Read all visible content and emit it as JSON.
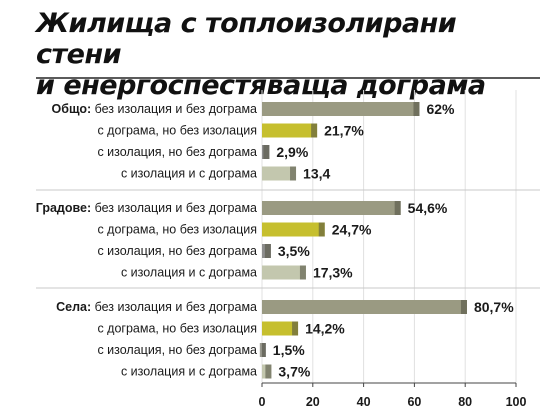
{
  "chart_data": {
    "type": "bar",
    "title_lines": [
      "Жилища с топлоизолирани стени",
      "и енергоспестяваща дограма"
    ],
    "x_ticks": [
      0,
      20,
      40,
      60,
      80,
      100
    ],
    "xlim": [
      0,
      100
    ],
    "grid": true,
    "colors": {
      "без изолация и без дограма": "#9a9a82",
      "с дограма, но без изолация": "#c6bf2e",
      "с изолация, но без дограма": "#8d8d8d",
      "с изолация и с дограма": "#c3c7ae"
    },
    "groups": [
      {
        "name": "Общо:",
        "items": [
          {
            "category": "без изолация и без дограма",
            "value": 62,
            "label": "62%"
          },
          {
            "category": "с дограма, но без изолация",
            "value": 21.7,
            "label": "21,7%"
          },
          {
            "category": "с изолация, но без дограма",
            "value": 2.9,
            "label": "2,9%"
          },
          {
            "category": "с изолация и с дограма",
            "value": 13.4,
            "label": "13,4"
          }
        ]
      },
      {
        "name": "Градове:",
        "items": [
          {
            "category": "без изолация и без дограма",
            "value": 54.6,
            "label": "54,6%"
          },
          {
            "category": "с дограма, но без изолация",
            "value": 24.7,
            "label": "24,7%"
          },
          {
            "category": "с изолация, но без дограма",
            "value": 3.5,
            "label": "3,5%"
          },
          {
            "category": "с изолация и с дограма",
            "value": 17.3,
            "label": "17,3%"
          }
        ]
      },
      {
        "name": "Села:",
        "items": [
          {
            "category": "без изолация и без дограма",
            "value": 80.7,
            "label": "80,7%"
          },
          {
            "category": "с дограма, но без изолация",
            "value": 14.2,
            "label": "14,2%"
          },
          {
            "category": "с изолация, но без дограма",
            "value": 1.5,
            "label": "1,5%"
          },
          {
            "category": "с изолация и с дограма",
            "value": 3.7,
            "label": "3,7%"
          }
        ]
      }
    ]
  }
}
